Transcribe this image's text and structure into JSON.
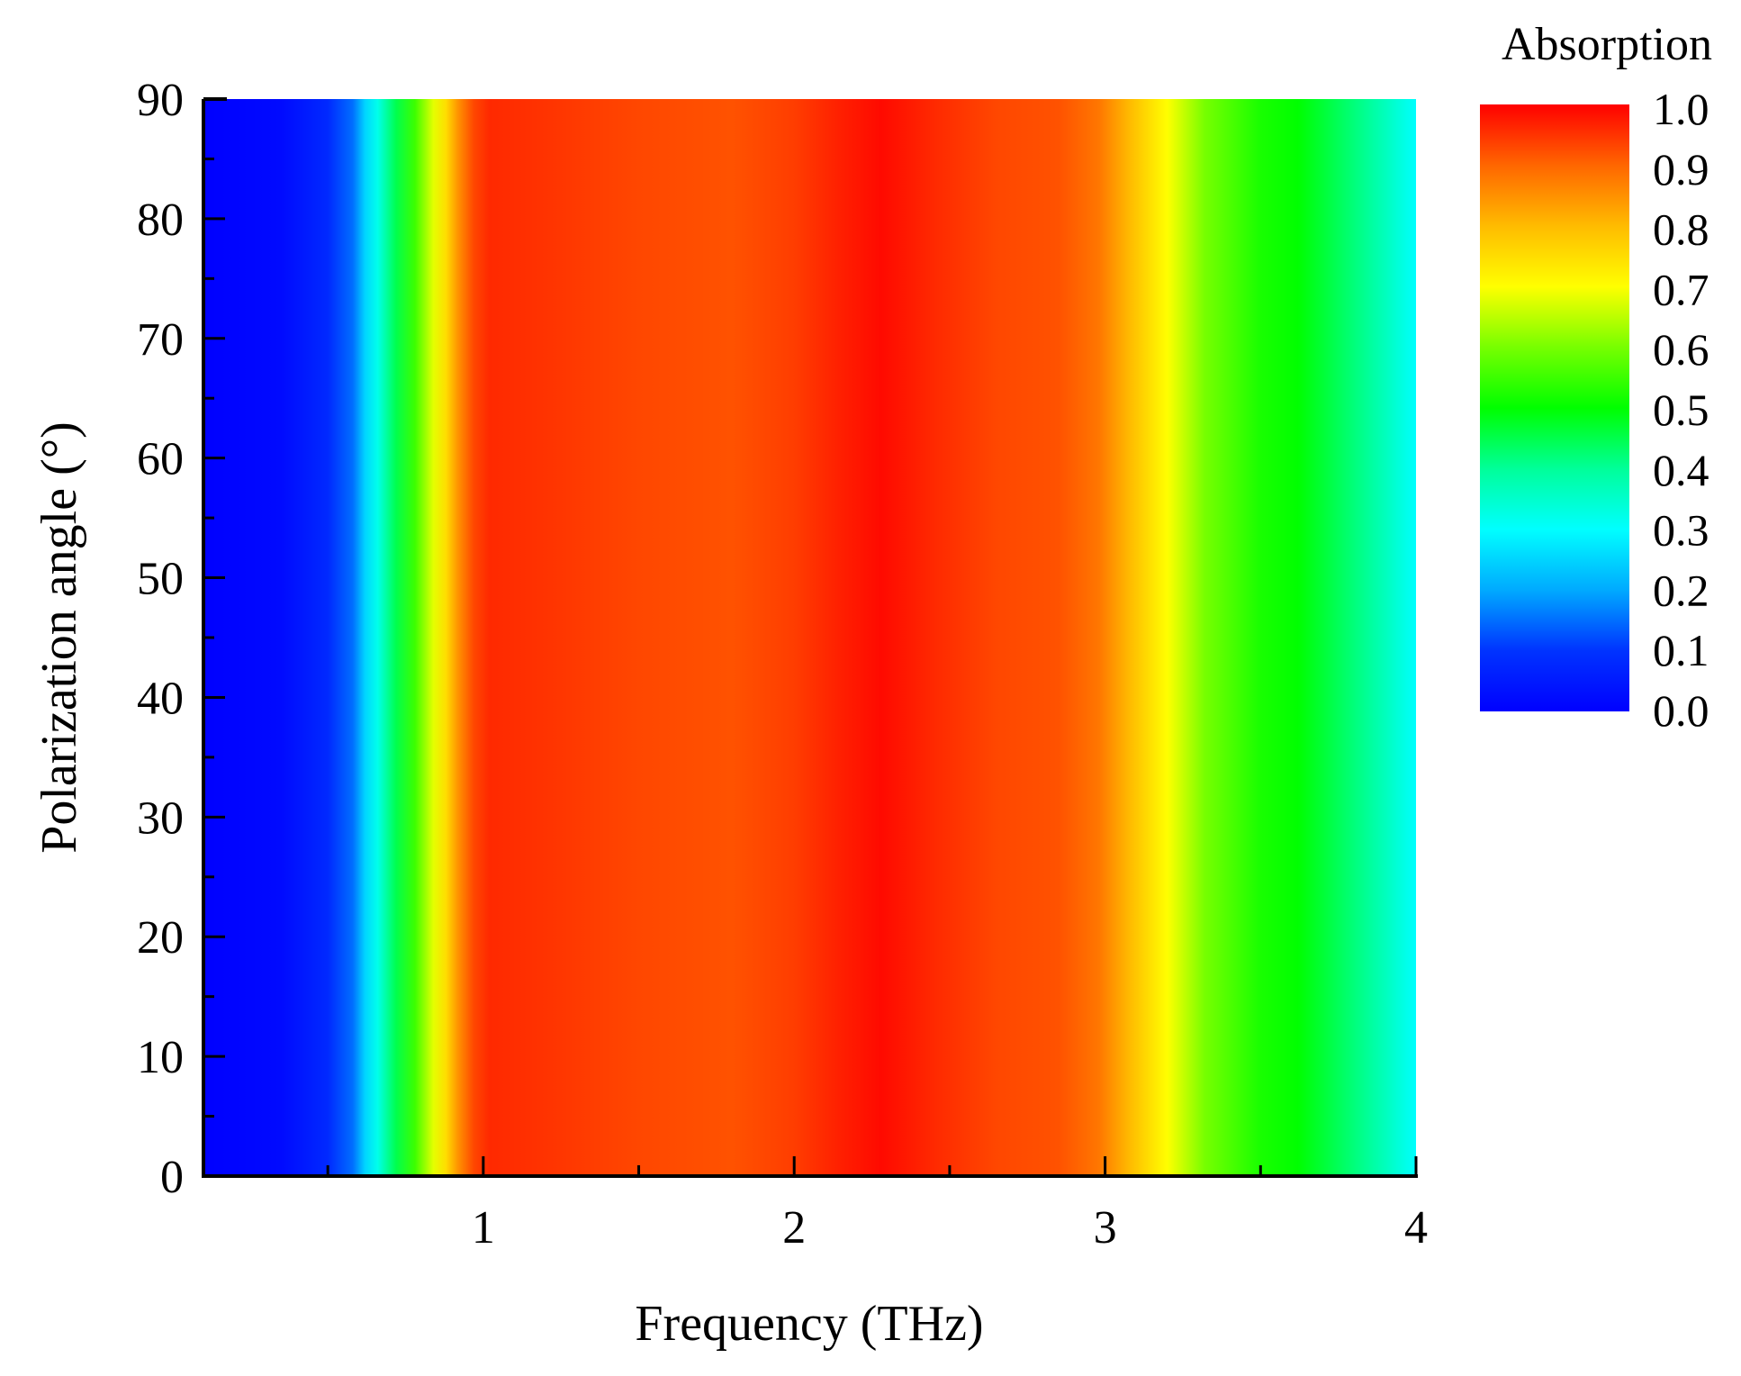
{
  "chart_data": {
    "type": "heatmap",
    "title": "",
    "xlabel": "Frequency (THz)",
    "ylabel": "Polarization angle (°)",
    "xlim": [
      0.1,
      4.0
    ],
    "ylim": [
      0,
      90
    ],
    "x_ticks": [
      1,
      2,
      3,
      4
    ],
    "x_tick_labels": [
      "1",
      "2",
      "3",
      "4"
    ],
    "x_minor_ticks": [
      0.5,
      1.5,
      2.5,
      3.5
    ],
    "y_ticks": [
      0,
      10,
      20,
      30,
      40,
      50,
      60,
      70,
      80,
      90
    ],
    "y_tick_labels": [
      "0",
      "10",
      "20",
      "30",
      "40",
      "50",
      "60",
      "70",
      "80",
      "90"
    ],
    "y_minor_ticks": [
      5,
      15,
      25,
      35,
      45,
      55,
      65,
      75,
      85
    ],
    "z_label": "Absorption",
    "z_range": [
      0.0,
      1.0
    ],
    "colorbar_ticks": [
      "1.0",
      "0.9",
      "0.8",
      "0.7",
      "0.6",
      "0.5",
      "0.4",
      "0.3",
      "0.2",
      "0.1",
      "0.0"
    ],
    "colormap": [
      {
        "v": 0.0,
        "color": "#0000ff"
      },
      {
        "v": 0.1,
        "color": "#0033ff"
      },
      {
        "v": 0.2,
        "color": "#00aaff"
      },
      {
        "v": 0.3,
        "color": "#00ffff"
      },
      {
        "v": 0.4,
        "color": "#00ff99"
      },
      {
        "v": 0.5,
        "color": "#00ff00"
      },
      {
        "v": 0.6,
        "color": "#77ff00"
      },
      {
        "v": 0.7,
        "color": "#ffff00"
      },
      {
        "v": 0.8,
        "color": "#ffbb00"
      },
      {
        "v": 0.9,
        "color": "#ff6600"
      },
      {
        "v": 1.0,
        "color": "#ff0000"
      }
    ],
    "absorption_vs_frequency": {
      "note_angle_independent": true,
      "frequency": [
        0.1,
        0.35,
        0.5,
        0.58,
        0.62,
        0.66,
        0.72,
        0.78,
        0.84,
        0.88,
        0.92,
        0.97,
        1.02,
        1.2,
        1.5,
        1.8,
        2.0,
        2.15,
        2.28,
        2.45,
        2.65,
        2.85,
        2.98,
        3.08,
        3.2,
        3.32,
        3.5,
        3.62,
        3.8,
        4.0
      ],
      "absorption": [
        0.0,
        0.02,
        0.08,
        0.15,
        0.25,
        0.32,
        0.45,
        0.55,
        0.68,
        0.75,
        0.85,
        0.93,
        0.96,
        0.95,
        0.93,
        0.92,
        0.94,
        0.97,
        0.99,
        0.96,
        0.93,
        0.92,
        0.88,
        0.8,
        0.7,
        0.6,
        0.52,
        0.5,
        0.42,
        0.3
      ]
    }
  }
}
